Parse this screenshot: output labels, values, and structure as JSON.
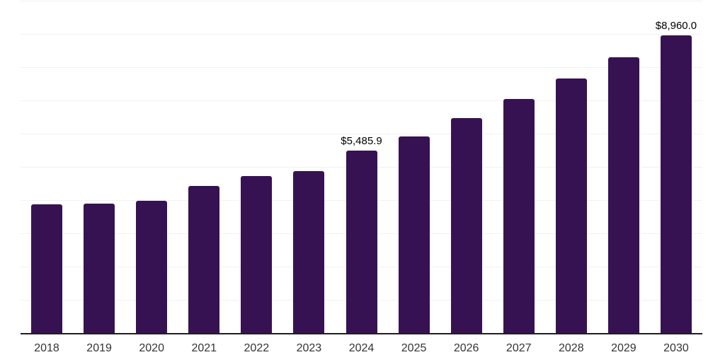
{
  "chart_data": {
    "type": "bar",
    "title": "",
    "xlabel": "",
    "ylabel": "",
    "categories": [
      "2018",
      "2019",
      "2020",
      "2021",
      "2022",
      "2023",
      "2024",
      "2025",
      "2026",
      "2027",
      "2028",
      "2029",
      "2030"
    ],
    "values": [
      3870,
      3895,
      3980,
      4425,
      4720,
      4875,
      5485.9,
      5915,
      6470,
      7040,
      7660,
      8300,
      8960
    ],
    "point_labels": [
      "",
      "",
      "",
      "",
      "",
      "",
      "$5,485.9",
      "",
      "",
      "",
      "",
      "",
      "$8,960.0"
    ],
    "ylim": [
      0,
      10000
    ],
    "gridline_interval": 1000,
    "grid": true,
    "legend": "none",
    "colors": {
      "bar": "#371253",
      "grid": "#f2f2f2",
      "axis": "#1f1f1f",
      "data_label": "#000000",
      "tick_label": "#333333",
      "background": "#ffffff"
    }
  }
}
